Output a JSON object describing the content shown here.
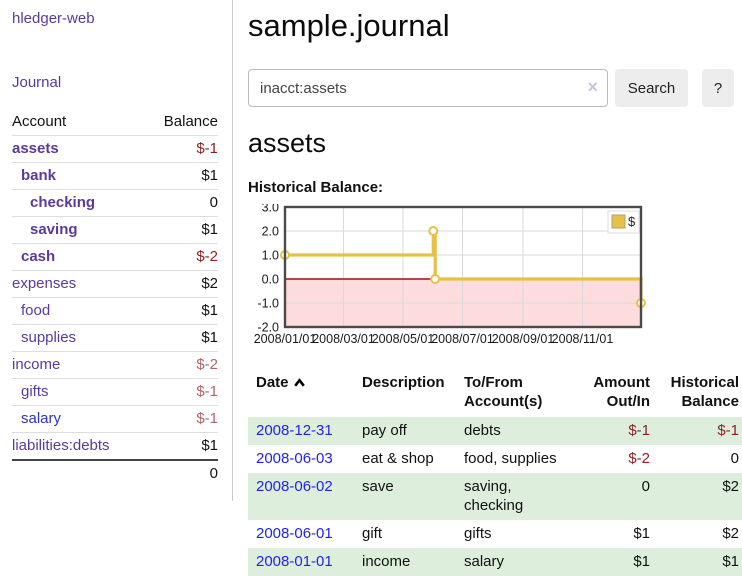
{
  "colors": {
    "link_purple": "#5b3a9e",
    "link_blue": "#2a35cc",
    "date_link_blue": "#2222ee",
    "negative_dark": "#8e1f1f",
    "negative_faded": "#b4636a",
    "row_green": "#ddeedd",
    "chart_gold": "#e7c04a",
    "chart_pink": "#fcdcdc",
    "chart_zero_line": "#991111"
  },
  "sidebar": {
    "app_title": "hledger-web",
    "journal_link": "Journal",
    "accounts_header": {
      "account": "Account",
      "balance": "Balance"
    },
    "accounts": [
      {
        "name": "assets",
        "depth": 1,
        "bold": true,
        "balance": "$-1",
        "balance_color": "negative_dark"
      },
      {
        "name": "bank",
        "depth": 2,
        "bold": true,
        "balance": "$1"
      },
      {
        "name": "checking",
        "depth": 3,
        "bold": true,
        "balance": "0"
      },
      {
        "name": "saving",
        "depth": 3,
        "bold": true,
        "balance": "$1"
      },
      {
        "name": "cash",
        "depth": 2,
        "bold": true,
        "balance": "$-2",
        "balance_color": "negative_dark"
      },
      {
        "name": "expenses",
        "depth": 1,
        "bold": false,
        "balance": "$2"
      },
      {
        "name": "food",
        "depth": 2,
        "bold": false,
        "balance": "$1"
      },
      {
        "name": "supplies",
        "depth": 2,
        "bold": false,
        "balance": "$1"
      },
      {
        "name": "income",
        "depth": 1,
        "bold": false,
        "balance": "$-2",
        "balance_color": "negative_faded"
      },
      {
        "name": "gifts",
        "depth": 2,
        "bold": false,
        "balance": "$-1",
        "balance_color": "negative_faded"
      },
      {
        "name": "salary",
        "depth": 2,
        "bold": false,
        "name_color": "blue",
        "balance": "$-1",
        "balance_color": "negative_faded"
      },
      {
        "name": "liabilities:debts",
        "depth": 1,
        "bold": false,
        "balance": "$1"
      }
    ],
    "total": "0"
  },
  "main": {
    "title": "sample.journal",
    "search": {
      "value": "inacct:assets",
      "clear_icon": "×",
      "button_label": "Search",
      "help_label": "?"
    },
    "account_heading": "assets"
  },
  "chart_data": {
    "type": "line",
    "title": "Historical Balance:",
    "xlim": [
      "2008-01-01",
      "2008-12-31"
    ],
    "ylim": [
      -2,
      3
    ],
    "y_ticks": [
      "3.0",
      "2.0",
      "1.0",
      "0.0",
      "-1.0",
      "-2.0"
    ],
    "y_tick_values": [
      3,
      2,
      1,
      0,
      -1,
      -2
    ],
    "x_ticks": [
      {
        "label": "2008/01/01",
        "date": "2008-01-01"
      },
      {
        "label": "2008/03/01",
        "date": "2008-03-01"
      },
      {
        "label": "2008/05/01",
        "date": "2008-05-01"
      },
      {
        "label": "2008/07/01",
        "date": "2008-07-01"
      },
      {
        "label": "2008/09/01",
        "date": "2008-09-01"
      },
      {
        "label": "2008/11/01",
        "date": "2008-11-01"
      }
    ],
    "grid": true,
    "negative_region_fill": "#fcdcdc",
    "zero_line_color": "#991111",
    "legend": {
      "label": "$",
      "position": "top-right",
      "swatch_color": "#e7c04a"
    },
    "series": [
      {
        "name": "$",
        "color": "#e7c04a",
        "step_points": [
          [
            "2008-01-01",
            1
          ],
          [
            "2008-06-01",
            1
          ],
          [
            "2008-06-01",
            2
          ],
          [
            "2008-06-03",
            2
          ],
          [
            "2008-06-03",
            0
          ],
          [
            "2008-12-31",
            0
          ],
          [
            "2008-12-31",
            -1
          ]
        ],
        "markers": [
          [
            "2008-01-01",
            1
          ],
          [
            "2008-06-01",
            2
          ],
          [
            "2008-06-03",
            0
          ],
          [
            "2008-12-31",
            -1
          ]
        ]
      }
    ]
  },
  "register": {
    "headers": [
      "Date",
      "Description",
      "To/From Account(s)",
      "Amount Out/In",
      "Historical Balance"
    ],
    "sort": {
      "column": "Date",
      "direction": "ascending"
    },
    "rows": [
      {
        "date": "2008-12-31",
        "description": "pay off",
        "accounts": "debts",
        "amount": "$-1",
        "amount_negative": true,
        "balance": "$-1",
        "balance_negative": true
      },
      {
        "date": "2008-06-03",
        "description": "eat & shop",
        "accounts": "food, supplies",
        "amount": "$-2",
        "amount_negative": true,
        "balance": "0",
        "balance_negative": false
      },
      {
        "date": "2008-06-02",
        "description": "save",
        "accounts": "saving, checking",
        "amount": "0",
        "amount_negative": false,
        "balance": "$2",
        "balance_negative": false
      },
      {
        "date": "2008-06-01",
        "description": "gift",
        "accounts": "gifts",
        "amount": "$1",
        "amount_negative": false,
        "balance": "$2",
        "balance_negative": false
      },
      {
        "date": "2008-01-01",
        "description": "income",
        "accounts": "salary",
        "amount": "$1",
        "amount_negative": false,
        "balance": "$1",
        "balance_negative": false
      }
    ]
  }
}
